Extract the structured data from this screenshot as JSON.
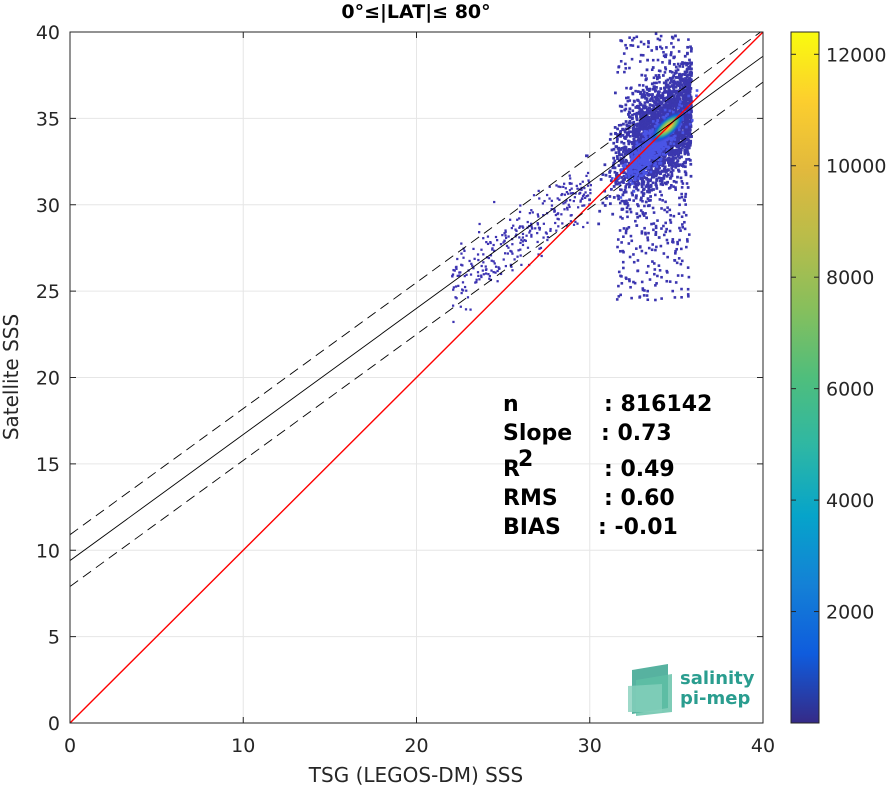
{
  "chart_data": {
    "type": "heatmap",
    "title": "0°≤|LAT|≤ 80°",
    "xlabel": "TSG (LEGOS-DM) SSS",
    "ylabel": "Satellite SSS",
    "xlim": [
      0,
      40
    ],
    "ylim": [
      0,
      40
    ],
    "x_ticks": [
      "0",
      "10",
      "20",
      "30",
      "40"
    ],
    "y_ticks": [
      "0",
      "5",
      "10",
      "15",
      "20",
      "25",
      "30",
      "35",
      "40"
    ],
    "grid": true,
    "colorbar": {
      "range": [
        0,
        12400
      ],
      "ticks": [
        "2000",
        "4000",
        "6000",
        "8000",
        "10000",
        "12000"
      ],
      "colormap": "parula"
    },
    "lines": [
      {
        "name": "1:1",
        "intercept": 0,
        "slope": 1,
        "color": "#ff0000",
        "style": "solid"
      },
      {
        "name": "regression",
        "intercept": 9.4,
        "slope": 0.73,
        "color": "#000000",
        "style": "solid"
      },
      {
        "name": "regression-upper",
        "intercept": 10.9,
        "slope": 0.73,
        "color": "#000000",
        "style": "dashed"
      },
      {
        "name": "regression-lower",
        "intercept": 7.9,
        "slope": 0.73,
        "color": "#000000",
        "style": "dashed"
      }
    ],
    "density_core": {
      "x": 34.5,
      "y": 34.5,
      "peak_count": 12400
    },
    "stats": [
      {
        "label": "n",
        "value": ": 816142"
      },
      {
        "label": "Slope",
        "value": ": 0.73"
      },
      {
        "label": "R",
        "sup": "2",
        "value": ": 0.49"
      },
      {
        "label": "RMS",
        "value": ": 0.60"
      },
      {
        "label": "BIAS",
        "value": ": -0.01"
      }
    ]
  },
  "logo": {
    "line1": "salinity",
    "line2": "pi-mep",
    "color": "#2a9d8f"
  }
}
